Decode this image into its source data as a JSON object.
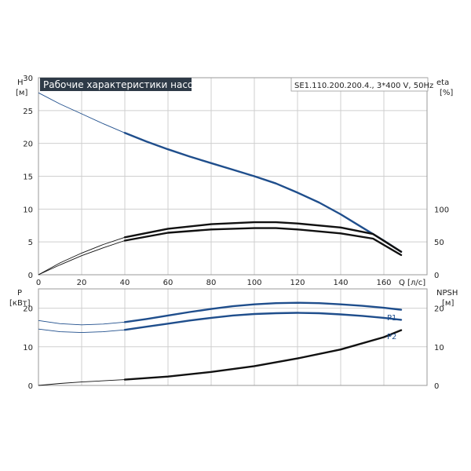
{
  "chart_data": [
    {
      "type": "line",
      "title": "Рабочие характеристики насоса",
      "model": "SE1.110.200.200.4., 3*400 V, 50Hz",
      "xlabel": "Q [л/с]",
      "ylabel": "H",
      "ylabel_unit": "[м]",
      "y2label": "eta",
      "y2label_unit": "[%]",
      "xlim": [
        0,
        180
      ],
      "ylim": [
        0,
        30
      ],
      "y2lim": [
        0,
        300
      ],
      "xticks": [
        "0",
        "20",
        "40",
        "60",
        "80",
        "100",
        "120",
        "140",
        "160"
      ],
      "yticks": [
        "0",
        "5",
        "10",
        "15",
        "20",
        "25",
        "30"
      ],
      "y2ticks": [
        "0",
        "50",
        "100"
      ],
      "grid": true,
      "series": [
        {
          "color": "#1f4e8c",
          "axis": "y",
          "bold_from": 40,
          "points": [
            [
              0,
              27.7
            ],
            [
              10,
              26.0
            ],
            [
              20,
              24.5
            ],
            [
              30,
              23.0
            ],
            [
              40,
              21.6
            ],
            [
              50,
              20.3
            ],
            [
              60,
              19.1
            ],
            [
              70,
              18.0
            ],
            [
              80,
              17.0
            ],
            [
              90,
              16.0
            ],
            [
              100,
              15.0
            ],
            [
              110,
              13.9
            ],
            [
              120,
              12.5
            ],
            [
              130,
              11.0
            ],
            [
              140,
              9.2
            ],
            [
              150,
              7.2
            ],
            [
              160,
              5.2
            ],
            [
              168,
              3.5
            ]
          ]
        },
        {
          "color": "#111111",
          "axis": "y2",
          "bold_from": 40,
          "points": [
            [
              0,
              0
            ],
            [
              10,
              18
            ],
            [
              20,
              33
            ],
            [
              30,
              46
            ],
            [
              40,
              57
            ],
            [
              60,
              70
            ],
            [
              80,
              77
            ],
            [
              100,
              80
            ],
            [
              110,
              80
            ],
            [
              120,
              78
            ],
            [
              140,
              72
            ],
            [
              155,
              62
            ],
            [
              168,
              35
            ]
          ]
        },
        {
          "color": "#111111",
          "axis": "y2",
          "bold_from": 40,
          "points": [
            [
              0,
              0
            ],
            [
              10,
              15
            ],
            [
              20,
              29
            ],
            [
              30,
              41
            ],
            [
              40,
              52
            ],
            [
              60,
              64
            ],
            [
              80,
              69
            ],
            [
              100,
              71
            ],
            [
              110,
              71
            ],
            [
              120,
              69
            ],
            [
              140,
              63
            ],
            [
              155,
              55
            ],
            [
              168,
              30
            ]
          ]
        }
      ]
    },
    {
      "type": "line",
      "ylabel": "P",
      "ylabel_unit": "[кВт]",
      "y2label": "NPSH",
      "y2label_unit": "[м]",
      "xlim": [
        0,
        180
      ],
      "ylim": [
        0,
        25
      ],
      "y2lim": [
        0,
        25
      ],
      "yticks": [
        "0",
        "10",
        "20"
      ],
      "y2ticks": [
        "0",
        "10",
        "20"
      ],
      "grid": true,
      "series": [
        {
          "name": "P1",
          "color": "#1f4e8c",
          "axis": "y",
          "bold_from": 40,
          "points": [
            [
              0,
              16.8
            ],
            [
              10,
              16.0
            ],
            [
              20,
              15.7
            ],
            [
              30,
              15.9
            ],
            [
              40,
              16.4
            ],
            [
              50,
              17.2
            ],
            [
              60,
              18.1
            ],
            [
              70,
              19.0
            ],
            [
              80,
              19.8
            ],
            [
              90,
              20.5
            ],
            [
              100,
              21.0
            ],
            [
              110,
              21.3
            ],
            [
              120,
              21.4
            ],
            [
              130,
              21.3
            ],
            [
              140,
              21.0
            ],
            [
              150,
              20.6
            ],
            [
              160,
              20.1
            ],
            [
              168,
              19.6
            ]
          ]
        },
        {
          "name": "P2",
          "color": "#1f4e8c",
          "axis": "y",
          "bold_from": 40,
          "points": [
            [
              0,
              14.6
            ],
            [
              10,
              13.9
            ],
            [
              20,
              13.7
            ],
            [
              30,
              13.9
            ],
            [
              40,
              14.4
            ],
            [
              50,
              15.2
            ],
            [
              60,
              16.0
            ],
            [
              70,
              16.8
            ],
            [
              80,
              17.5
            ],
            [
              90,
              18.1
            ],
            [
              100,
              18.5
            ],
            [
              110,
              18.7
            ],
            [
              120,
              18.8
            ],
            [
              130,
              18.7
            ],
            [
              140,
              18.4
            ],
            [
              150,
              18.0
            ],
            [
              160,
              17.5
            ],
            [
              168,
              17.0
            ]
          ]
        },
        {
          "color": "#111111",
          "axis": "y2",
          "bold_from": 40,
          "points": [
            [
              0,
              0
            ],
            [
              10,
              0.5
            ],
            [
              20,
              0.9
            ],
            [
              30,
              1.2
            ],
            [
              40,
              1.5
            ],
            [
              60,
              2.3
            ],
            [
              80,
              3.5
            ],
            [
              100,
              5.0
            ],
            [
              120,
              7.0
            ],
            [
              140,
              9.3
            ],
            [
              160,
              12.5
            ],
            [
              168,
              14.3
            ]
          ]
        }
      ]
    }
  ]
}
